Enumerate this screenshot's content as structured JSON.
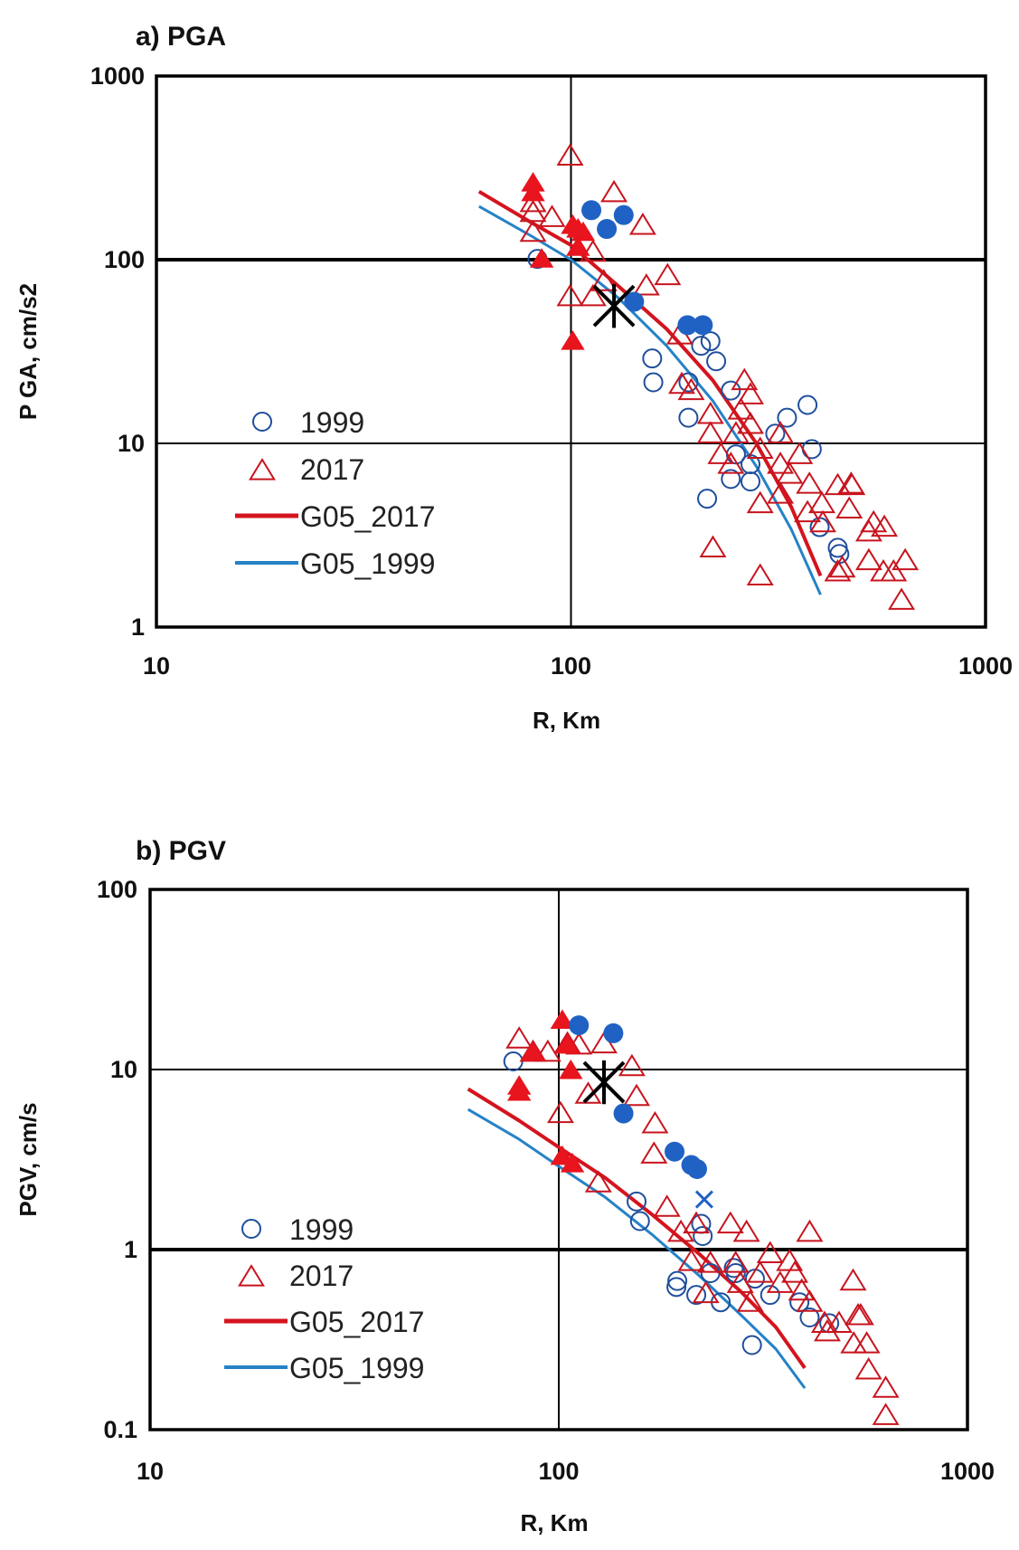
{
  "colors": {
    "open_2017": "#c8141e",
    "filled_2017": "#e8141e",
    "open_1999": "#1f4e9c",
    "filled_1999": "#2062c4",
    "line_2017": "#d4141e",
    "line_1999": "#2582c6",
    "star": "#000000"
  },
  "chart_data": [
    {
      "type": "scatter",
      "title": "a) PGA",
      "xlabel": "R, Km",
      "ylabel": "P GA, cm/s2",
      "xscale": "log",
      "yscale": "log",
      "xlim": [
        10,
        1000
      ],
      "ylim": [
        1,
        1000
      ],
      "xticks": [
        "10",
        "100",
        "1000"
      ],
      "yticks": [
        "1",
        "10",
        "100",
        "1000"
      ],
      "grid": true,
      "legend_position": "bottom-left",
      "legend": [
        "1999",
        "2017",
        "G05_2017",
        "G05_1999"
      ],
      "series": [
        {
          "name": "1999",
          "marker": "open-circle",
          "points": [
            [
              83,
              101
            ],
            [
              157,
              29
            ],
            [
              158,
              21.5
            ],
            [
              192,
              13.8
            ],
            [
              206,
              34
            ],
            [
              217,
              36
            ],
            [
              224,
              28
            ],
            [
              192,
              21.5
            ],
            [
              243,
              19.4
            ],
            [
              213,
              5.0
            ],
            [
              243,
              6.4
            ],
            [
              271,
              6.2
            ],
            [
              271,
              7.7
            ],
            [
              311,
              11.3
            ],
            [
              372,
              16.2
            ],
            [
              381,
              9.3
            ],
            [
              398,
              3.5
            ],
            [
              440,
              2.7
            ],
            [
              444,
              2.5
            ],
            [
              332,
              13.8
            ],
            [
              250,
              8.7
            ]
          ]
        },
        {
          "name": "2017",
          "marker": "open-triangle",
          "points": [
            [
              99.5,
              367
            ],
            [
              81,
              205
            ],
            [
              81,
              181
            ],
            [
              90,
              170
            ],
            [
              127,
              232
            ],
            [
              149,
              154
            ],
            [
              81,
              141
            ],
            [
              113,
              110
            ],
            [
              99.5,
              63
            ],
            [
              113,
              63
            ],
            [
              120,
              76
            ],
            [
              152,
              72
            ],
            [
              171,
              82
            ],
            [
              183,
              39
            ],
            [
              185,
              21
            ],
            [
              217,
              14.4
            ],
            [
              195,
              19.4
            ],
            [
              217,
              11.3
            ],
            [
              230,
              8.7
            ],
            [
              243,
              7.7
            ],
            [
              257,
              15.2
            ],
            [
              262,
              22
            ],
            [
              271,
              18.4
            ],
            [
              250,
              11.3
            ],
            [
              271,
              12.7
            ],
            [
              286,
              9.3
            ],
            [
              320,
              11.3
            ],
            [
              286,
              4.7
            ],
            [
              320,
              7.7
            ],
            [
              337,
              6.8
            ],
            [
              320,
              5.3
            ],
            [
              376,
              6.0
            ],
            [
              372,
              4.2
            ],
            [
              356,
              8.7
            ],
            [
              220,
              2.7
            ],
            [
              286,
              1.9
            ],
            [
              440,
              5.9
            ],
            [
              469,
              4.4
            ],
            [
              403,
              4.7
            ],
            [
              474,
              6.0
            ],
            [
              405,
              3.7
            ],
            [
              523,
              2.3
            ],
            [
              476,
              5.9
            ],
            [
              523,
              3.3
            ],
            [
              570,
              3.5
            ],
            [
              600,
              2.0
            ],
            [
              451,
              2.1
            ],
            [
              440,
              2.0
            ],
            [
              640,
              2.3
            ],
            [
              567,
              2.0
            ],
            [
              537,
              3.7
            ],
            [
              627,
              1.4
            ]
          ]
        },
        {
          "marker": "filled-triangle",
          "points": [
            [
              81,
              262
            ],
            [
              81,
              232
            ],
            [
              85,
              101
            ],
            [
              101,
              154
            ],
            [
              107,
              141
            ],
            [
              104,
              117
            ],
            [
              101,
              36
            ],
            [
              104,
              147
            ]
          ]
        },
        {
          "marker": "filled-circle",
          "points": [
            [
              112,
              186
            ],
            [
              122,
              147
            ],
            [
              134,
              175
            ],
            [
              142,
              59
            ],
            [
              191,
              44
            ],
            [
              208,
              44
            ]
          ]
        },
        {
          "marker": "star",
          "points": [
            [
              127,
              56
            ]
          ]
        },
        {
          "name": "G05_2017",
          "type": "line",
          "points": [
            [
              60,
              235
            ],
            [
              80,
              160
            ],
            [
              100,
              120
            ],
            [
              130,
              72
            ],
            [
              170,
              42
            ],
            [
              220,
              22
            ],
            [
              280,
              10
            ],
            [
              340,
              4.5
            ],
            [
              400,
              1.9
            ]
          ]
        },
        {
          "name": "G05_1999",
          "type": "line",
          "points": [
            [
              60,
              195
            ],
            [
              80,
              135
            ],
            [
              100,
              100
            ],
            [
              130,
              62
            ],
            [
              170,
              34
            ],
            [
              220,
              17
            ],
            [
              280,
              7.5
            ],
            [
              340,
              3.4
            ],
            [
              400,
              1.5
            ]
          ]
        }
      ]
    },
    {
      "type": "scatter",
      "title": "b) PGV",
      "xlabel": "R, Km",
      "ylabel": "PGV, cm/s",
      "xscale": "log",
      "yscale": "log",
      "xlim": [
        10,
        1000
      ],
      "ylim": [
        0.1,
        100
      ],
      "xticks": [
        "10",
        "100",
        "1000"
      ],
      "yticks": [
        "0.1",
        "1",
        "10",
        "100"
      ],
      "grid": true,
      "legend_position": "bottom-left",
      "legend": [
        "1999",
        "2017",
        "G05_2017",
        "G05_1999"
      ],
      "series": [
        {
          "name": "1999",
          "marker": "open-circle",
          "points": [
            [
              77.4,
              11.1
            ],
            [
              155,
              1.85
            ],
            [
              158,
              1.44
            ],
            [
              194,
              0.62
            ],
            [
              195,
              0.67
            ],
            [
              217,
              0.56
            ],
            [
              223,
              1.39
            ],
            [
              225,
              1.19
            ],
            [
              235,
              0.74
            ],
            [
              249,
              0.51
            ],
            [
              268,
              0.79
            ],
            [
              297,
              0.295
            ],
            [
              329,
              0.56
            ],
            [
              388,
              0.51
            ],
            [
              411,
              0.42
            ],
            [
              459,
              0.39
            ],
            [
              271,
              0.74
            ],
            [
              302,
              0.69
            ]
          ]
        },
        {
          "name": "2017",
          "marker": "open-triangle",
          "points": [
            [
              80,
              14.8
            ],
            [
              86.5,
              12.5
            ],
            [
              94,
              12.5
            ],
            [
              101,
              5.7
            ],
            [
              105,
              13.9
            ],
            [
              112,
              13.7
            ],
            [
              118,
              7.3
            ],
            [
              129,
              13.9
            ],
            [
              151,
              10.4
            ],
            [
              155,
              7.1
            ],
            [
              172,
              5.0
            ],
            [
              171,
              3.4
            ],
            [
              125,
              2.35
            ],
            [
              184,
              1.72
            ],
            [
              199,
              1.25
            ],
            [
              211,
              0.86
            ],
            [
              217,
              1.39
            ],
            [
              229,
              0.57
            ],
            [
              235,
              0.84
            ],
            [
              263,
              1.39
            ],
            [
              271,
              0.84
            ],
            [
              278,
              0.65
            ],
            [
              288,
              1.25
            ],
            [
              294,
              0.51
            ],
            [
              311,
              0.74
            ],
            [
              329,
              0.95
            ],
            [
              348,
              0.65
            ],
            [
              367,
              0.86
            ],
            [
              378,
              0.74
            ],
            [
              393,
              0.59
            ],
            [
              411,
              0.51
            ],
            [
              447,
              0.39
            ],
            [
              485,
              0.39
            ],
            [
              527,
              0.3
            ],
            [
              411,
              1.25
            ],
            [
              525,
              0.67
            ],
            [
              548,
              0.43
            ],
            [
              573,
              0.215
            ],
            [
              454,
              0.35
            ],
            [
              567,
              0.3
            ],
            [
              631,
              0.17
            ],
            [
              631,
              0.12
            ],
            [
              540,
              0.43
            ]
          ]
        },
        {
          "marker": "filled-triangle",
          "points": [
            [
              80,
              8.1
            ],
            [
              80,
              7.5
            ],
            [
              86.5,
              12.5
            ],
            [
              102,
              18.8
            ],
            [
              105,
              13.7
            ],
            [
              107,
              9.9
            ],
            [
              102,
              3.3
            ],
            [
              108,
              3.0
            ]
          ]
        },
        {
          "marker": "filled-circle",
          "points": [
            [
              112,
              17.6
            ],
            [
              136,
              15.9
            ],
            [
              144,
              5.7
            ],
            [
              192,
              3.5
            ],
            [
              211,
              2.95
            ],
            [
              218,
              2.8
            ]
          ]
        },
        {
          "marker": "x-cross",
          "points": [
            [
              227,
              1.9
            ]
          ]
        },
        {
          "marker": "star",
          "points": [
            [
              129,
              8.5
            ]
          ]
        },
        {
          "name": "G05_2017",
          "type": "line",
          "points": [
            [
              60,
              7.8
            ],
            [
              80,
              5.2
            ],
            [
              100,
              3.7
            ],
            [
              130,
              2.5
            ],
            [
              170,
              1.55
            ],
            [
              220,
              0.95
            ],
            [
              280,
              0.58
            ],
            [
              340,
              0.37
            ],
            [
              400,
              0.22
            ]
          ]
        },
        {
          "name": "G05_1999",
          "type": "line",
          "points": [
            [
              60,
              6.0
            ],
            [
              80,
              4.1
            ],
            [
              100,
              2.9
            ],
            [
              130,
              1.95
            ],
            [
              170,
              1.2
            ],
            [
              220,
              0.72
            ],
            [
              280,
              0.43
            ],
            [
              340,
              0.28
            ],
            [
              400,
              0.17
            ]
          ]
        }
      ]
    }
  ]
}
